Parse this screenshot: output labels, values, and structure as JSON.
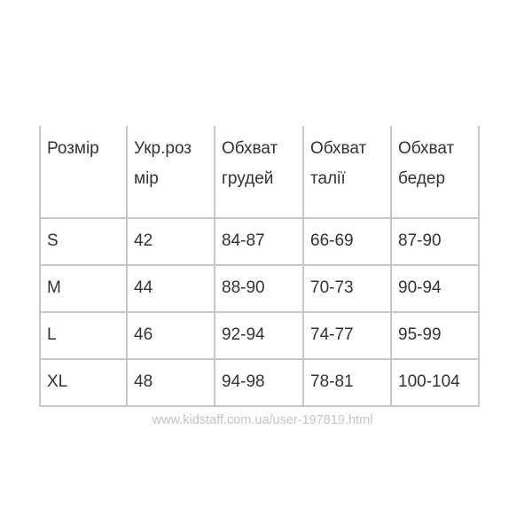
{
  "table": {
    "headers": [
      [
        "Розмір"
      ],
      [
        "Укр.роз",
        "мір"
      ],
      [
        "Обхват",
        "грудей"
      ],
      [
        "Обхват",
        "талії"
      ],
      [
        "Обхват",
        "бедер"
      ]
    ],
    "rows": [
      [
        "S",
        "42",
        "84-87",
        "66-69",
        "87-90"
      ],
      [
        "M",
        "44",
        "88-90",
        "70-73",
        "90-94"
      ],
      [
        "L",
        "46",
        "92-94",
        "74-77",
        "95-99"
      ],
      [
        "XL",
        "48",
        "94-98",
        "78-81",
        "100-104"
      ]
    ]
  },
  "watermark": "www.kidstaff.com.ua/user-197819.html"
}
